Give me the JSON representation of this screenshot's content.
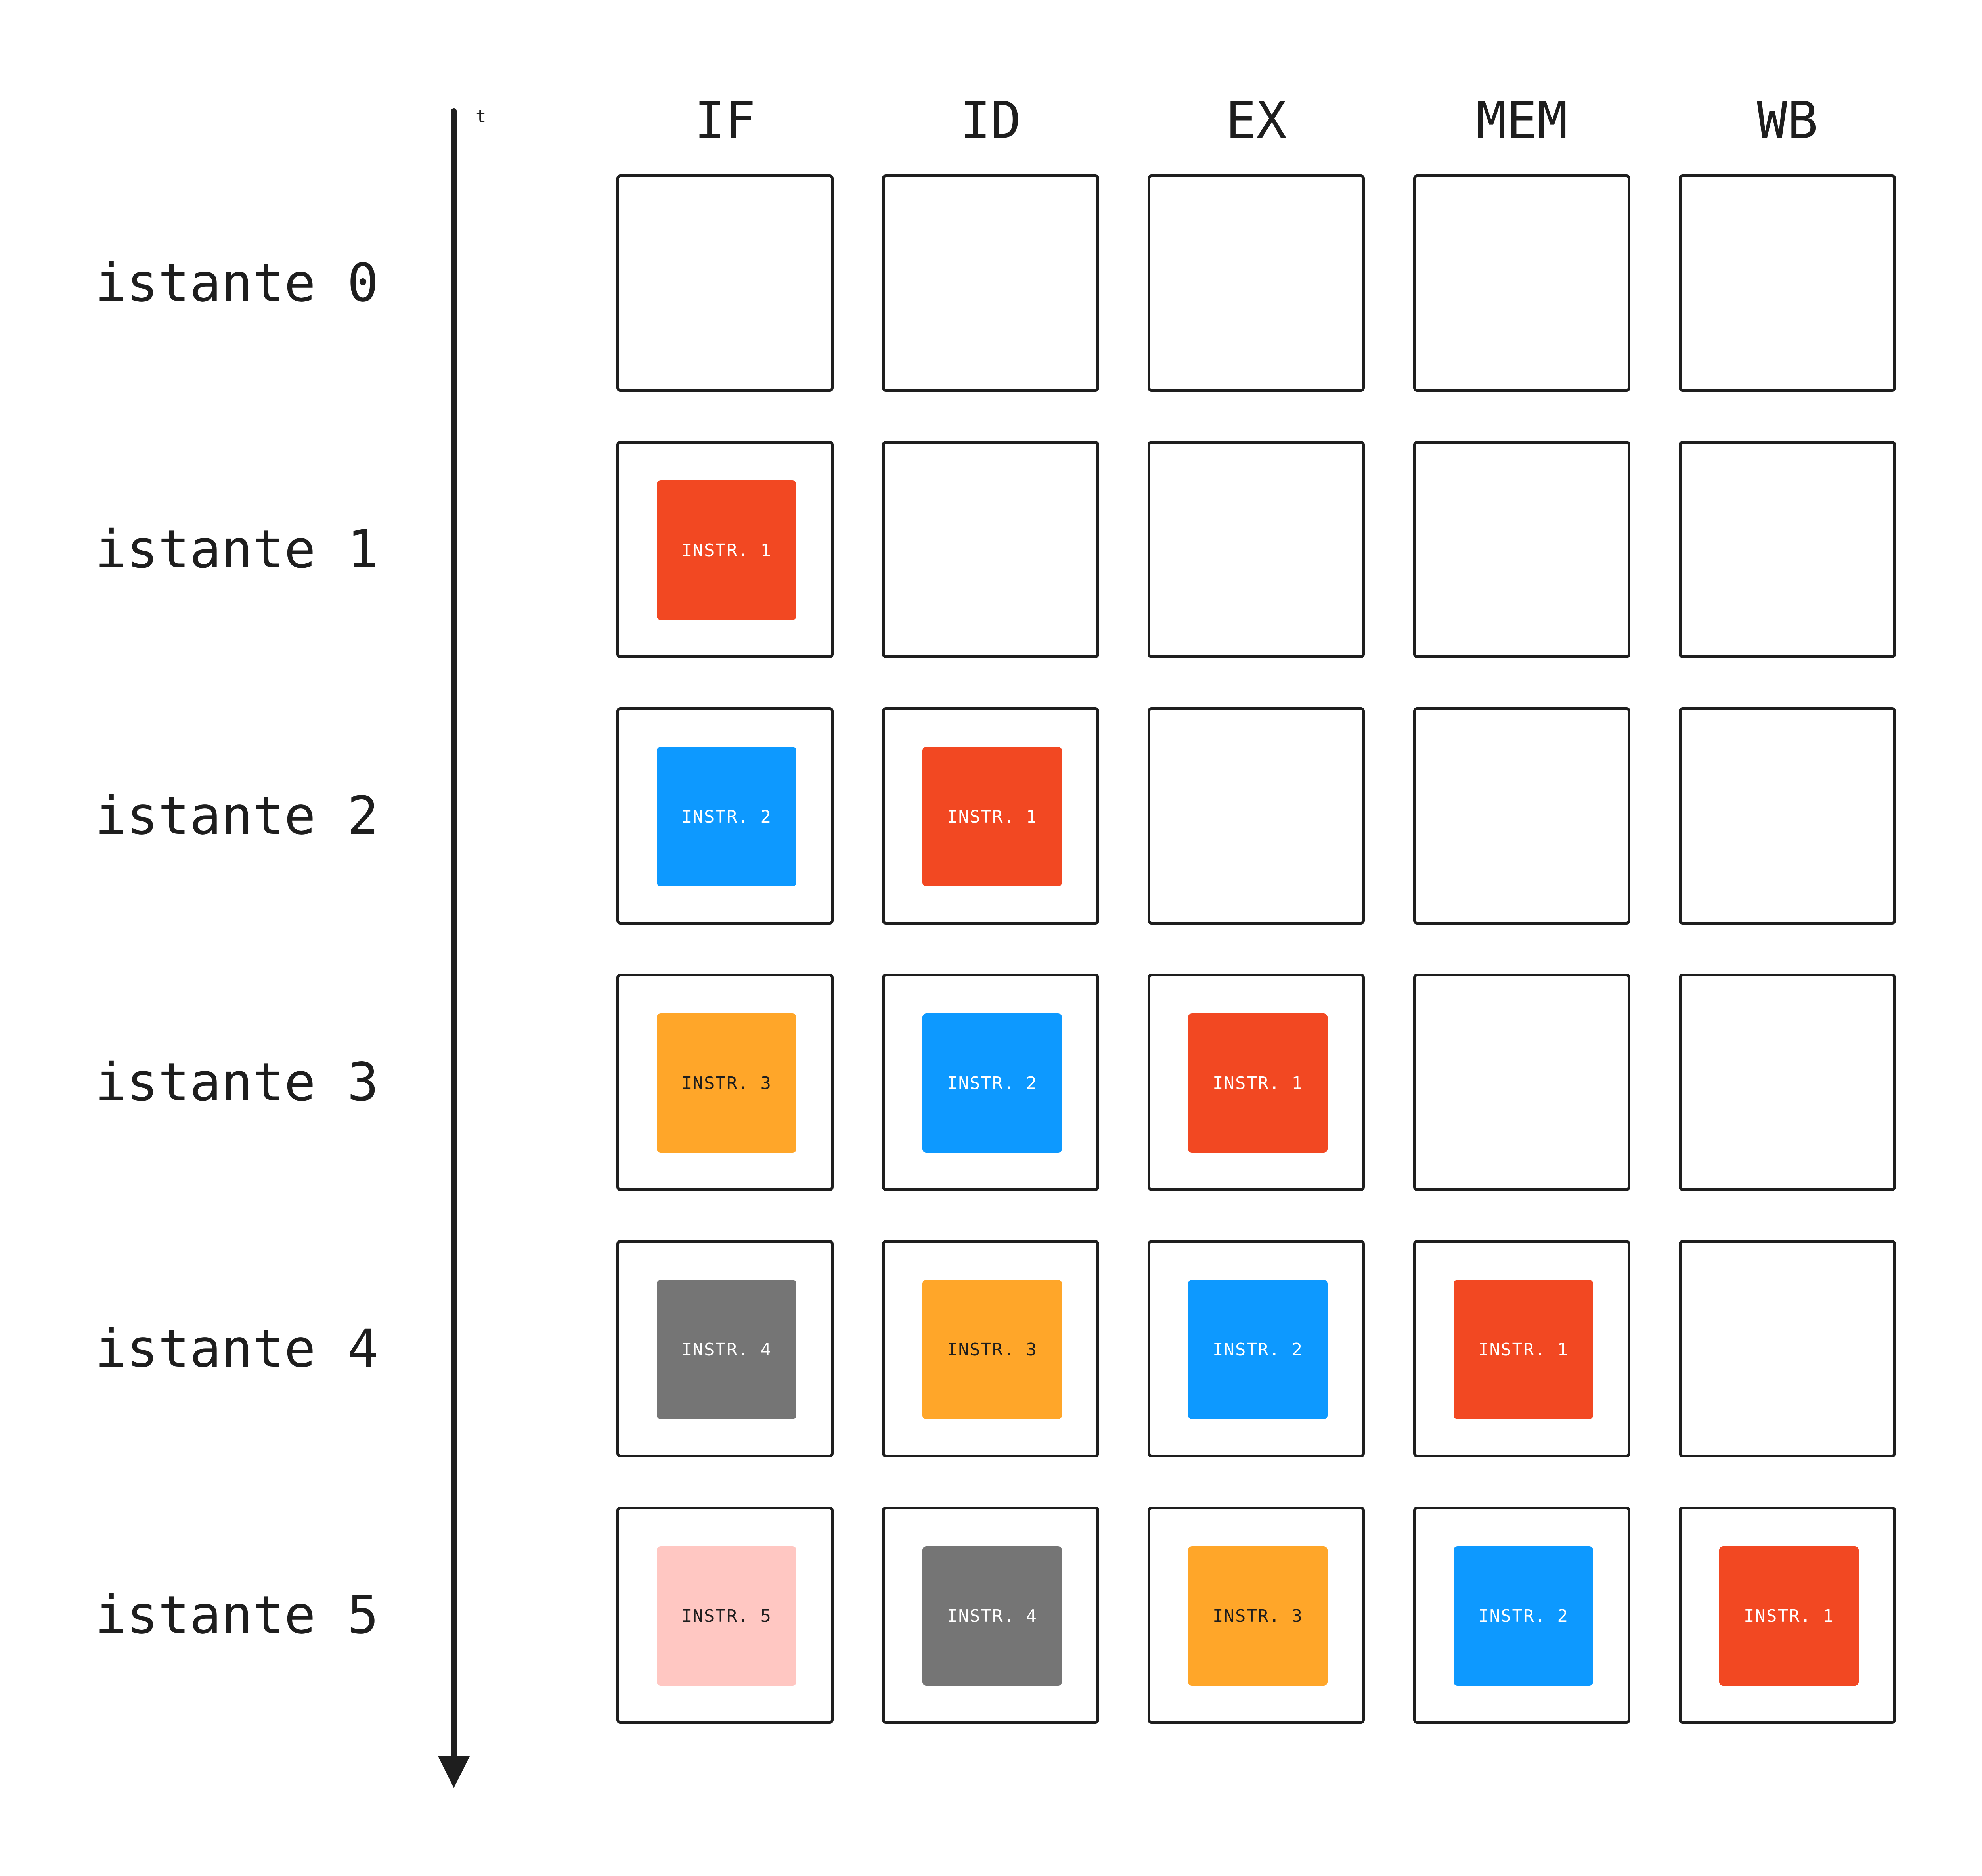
{
  "axis": {
    "label": "t"
  },
  "stages": [
    "IF",
    "ID",
    "EX",
    "MEM",
    "WB"
  ],
  "colors": {
    "instr_1": "#f24822",
    "instr_2": "#0d99ff",
    "instr_3": "#ffa629",
    "instr_4": "#757575",
    "instr_5": "#ffc7c2"
  },
  "text_colors": {
    "instr_1": "#ffffff",
    "instr_2": "#ffffff",
    "instr_3": "#1e1e1e",
    "instr_4": "#ffffff",
    "instr_5": "#1e1e1e"
  },
  "instructions": [
    "INSTR. 1",
    "INSTR. 2",
    "INSTR. 3",
    "INSTR. 4",
    "INSTR. 5"
  ],
  "rows": [
    {
      "label": "istante 0",
      "cells": [
        null,
        null,
        null,
        null,
        null
      ]
    },
    {
      "label": "istante 1",
      "cells": [
        1,
        null,
        null,
        null,
        null
      ]
    },
    {
      "label": "istante 2",
      "cells": [
        2,
        1,
        null,
        null,
        null
      ]
    },
    {
      "label": "istante 3",
      "cells": [
        3,
        2,
        1,
        null,
        null
      ]
    },
    {
      "label": "istante 4",
      "cells": [
        4,
        3,
        2,
        1,
        null
      ]
    },
    {
      "label": "istante 5",
      "cells": [
        5,
        4,
        3,
        2,
        1
      ]
    }
  ]
}
